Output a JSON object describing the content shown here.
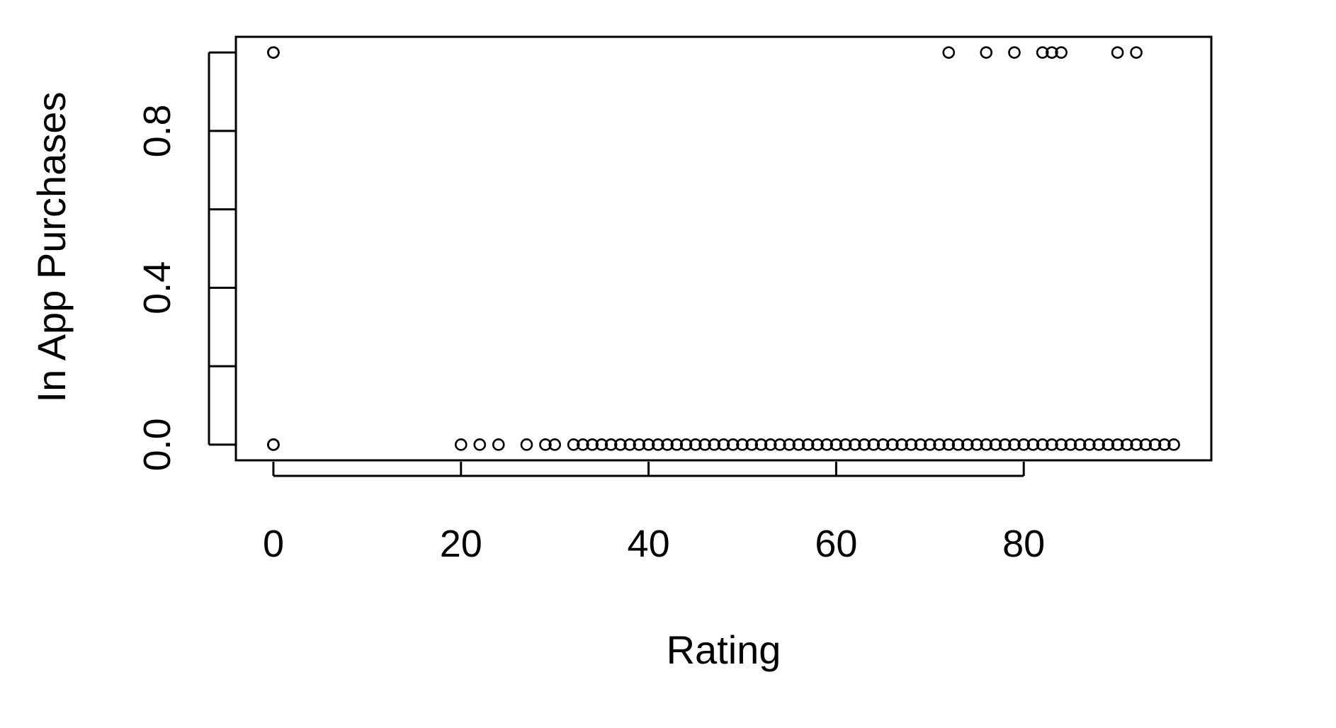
{
  "chart_data": {
    "type": "scatter",
    "title": "",
    "xlabel": "Rating",
    "ylabel": "In App Purchases",
    "xlim": [
      -4,
      100
    ],
    "ylim": [
      -0.04,
      1.04
    ],
    "xticks": [
      0,
      20,
      40,
      60,
      80
    ],
    "xtick_labels": [
      "0",
      "20",
      "40",
      "60",
      "80"
    ],
    "yticks": [
      0.0,
      0.2,
      0.4,
      0.6,
      0.8,
      1.0
    ],
    "ytick_labels": [
      "0.0",
      "",
      "0.4",
      "",
      "0.8",
      ""
    ],
    "grid": false,
    "legend": "none",
    "marker": "open-circle",
    "series": [
      {
        "x": [
          0,
          0,
          0,
          20,
          22,
          24,
          27,
          29,
          30,
          32,
          33,
          34,
          35,
          36,
          37,
          38,
          39,
          40,
          41,
          42,
          43,
          44,
          45,
          46,
          47,
          48,
          49,
          50,
          51,
          52,
          53,
          54,
          55,
          56,
          57,
          58,
          59,
          60,
          61,
          62,
          63,
          64,
          65,
          66,
          67,
          68,
          69,
          70,
          71,
          72,
          73,
          74,
          75,
          76,
          77,
          78,
          79,
          80,
          81,
          82,
          83,
          84,
          85,
          86,
          87,
          88,
          89,
          90,
          91,
          92,
          93,
          94,
          95,
          96,
          0,
          0,
          72,
          76,
          79,
          82,
          83,
          84,
          90,
          92
        ],
        "y": [
          0,
          0,
          0,
          0,
          0,
          0,
          0,
          0,
          0,
          0,
          0,
          0,
          0,
          0,
          0,
          0,
          0,
          0,
          0,
          0,
          0,
          0,
          0,
          0,
          0,
          0,
          0,
          0,
          0,
          0,
          0,
          0,
          0,
          0,
          0,
          0,
          0,
          0,
          0,
          0,
          0,
          0,
          0,
          0,
          0,
          0,
          0,
          0,
          0,
          0,
          0,
          0,
          0,
          0,
          0,
          0,
          0,
          0,
          0,
          0,
          0,
          0,
          0,
          0,
          0,
          0,
          0,
          0,
          0,
          0,
          0,
          0,
          0,
          0,
          1,
          1,
          1,
          1,
          1,
          1,
          1,
          1,
          1,
          1
        ]
      }
    ]
  }
}
